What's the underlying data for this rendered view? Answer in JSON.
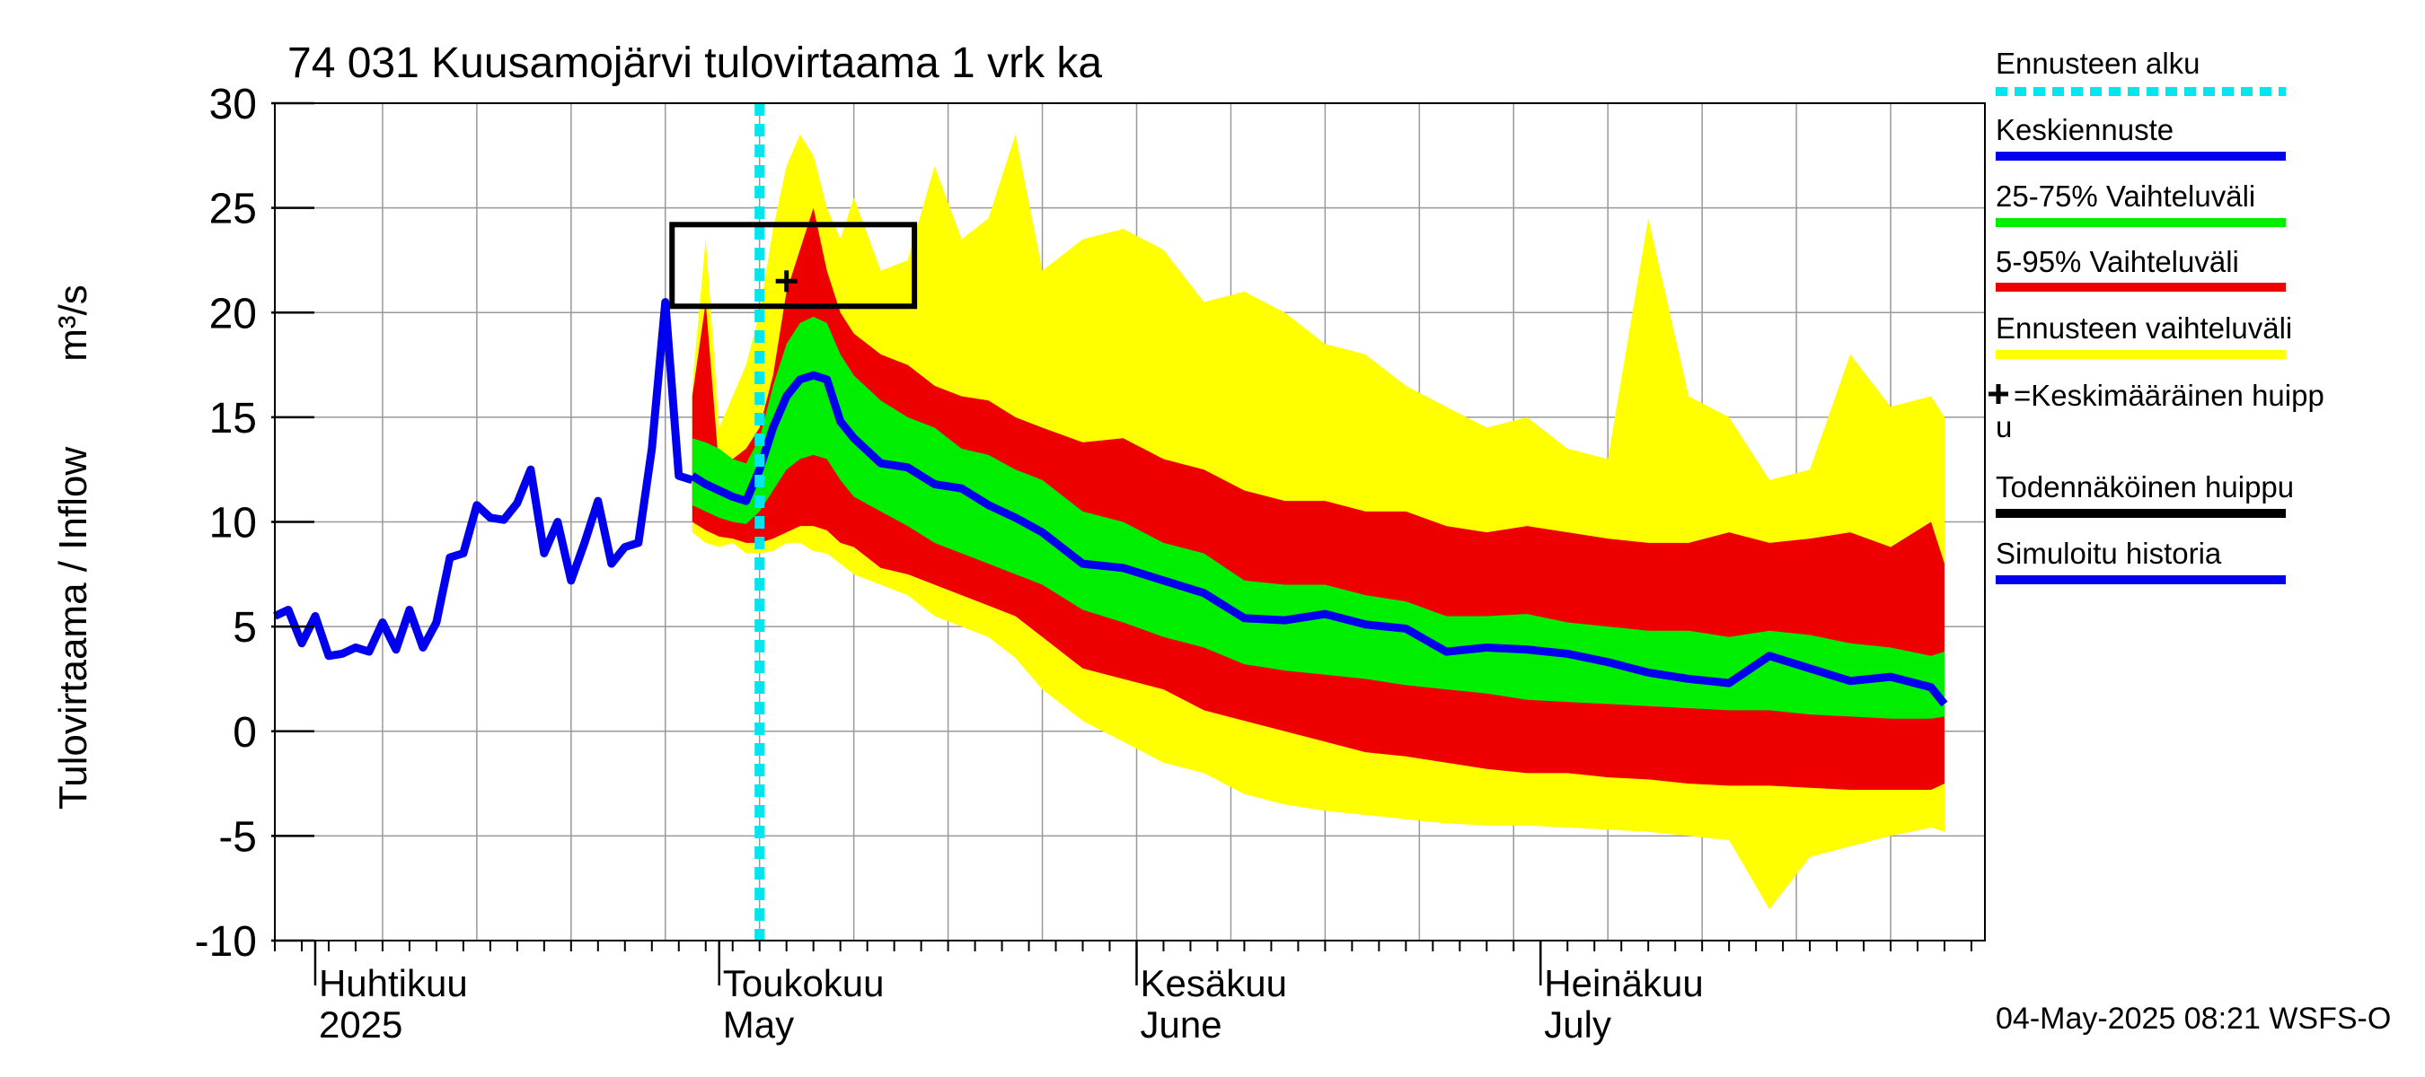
{
  "chart_data": {
    "type": "area",
    "title": "74 031 Kuusamojärvi tulovirtaama 1 vrk ka",
    "ylabel": "Tulovirtaama / Inflow",
    "yunit": "m³/s",
    "ylim": [
      -10,
      30
    ],
    "yticks": [
      -10,
      -5,
      0,
      5,
      10,
      15,
      20,
      25,
      30
    ],
    "x_start": "2025-03-29",
    "x_end": "2025-08-03",
    "forecast_start": "2025-05-04",
    "months": [
      {
        "fi": "Huhtikuu",
        "en": "2025",
        "date": "2025-04-01"
      },
      {
        "fi": "Toukokuu",
        "en": "May",
        "date": "2025-05-01"
      },
      {
        "fi": "Kesäkuu",
        "en": "June",
        "date": "2025-06-01"
      },
      {
        "fi": "Heinäkuu",
        "en": "July",
        "date": "2025-07-01"
      }
    ],
    "history": [
      [
        0,
        5.5
      ],
      [
        1,
        5.8
      ],
      [
        2,
        4.2
      ],
      [
        3,
        5.5
      ],
      [
        4,
        3.6
      ],
      [
        5,
        3.7
      ],
      [
        6,
        4.0
      ],
      [
        7,
        3.8
      ],
      [
        8,
        5.2
      ],
      [
        9,
        3.9
      ],
      [
        10,
        5.8
      ],
      [
        11,
        4.0
      ],
      [
        12,
        5.2
      ],
      [
        13,
        8.3
      ],
      [
        14,
        8.5
      ],
      [
        15,
        10.8
      ],
      [
        16,
        10.2
      ],
      [
        17,
        10.1
      ],
      [
        18,
        10.9
      ],
      [
        19,
        12.5
      ],
      [
        20,
        8.5
      ],
      [
        21,
        10.0
      ],
      [
        22,
        7.2
      ],
      [
        23,
        9.0
      ],
      [
        24,
        11.0
      ],
      [
        25,
        8.0
      ],
      [
        26,
        8.8
      ],
      [
        27,
        9.0
      ],
      [
        28,
        13.5
      ],
      [
        29,
        20.5
      ],
      [
        30,
        12.2
      ],
      [
        31,
        12.0
      ]
    ],
    "forecast_x": [
      31,
      32,
      33,
      34,
      35,
      36,
      37,
      38,
      39,
      40,
      41,
      42,
      43,
      45,
      47,
      49,
      51,
      53,
      55,
      57,
      60,
      63,
      66,
      69,
      72,
      75,
      78,
      81,
      84,
      87,
      90,
      93,
      96,
      99,
      102,
      105,
      108,
      111,
      114,
      117,
      120,
      123,
      124
    ],
    "median": [
      12.2,
      11.8,
      11.5,
      11.2,
      11.0,
      12.5,
      14.5,
      16.0,
      16.8,
      17.0,
      16.8,
      14.8,
      14.0,
      12.8,
      12.6,
      11.8,
      11.6,
      10.8,
      10.2,
      9.5,
      8.0,
      7.8,
      7.2,
      6.6,
      5.4,
      5.3,
      5.6,
      5.1,
      4.9,
      3.8,
      4.0,
      3.9,
      3.7,
      3.3,
      2.8,
      2.5,
      2.3,
      3.6,
      3.0,
      2.4,
      2.6,
      2.1,
      1.3
    ],
    "p25": [
      10.8,
      10.5,
      10.2,
      10.0,
      9.9,
      10.5,
      11.5,
      12.5,
      13.0,
      13.2,
      13.0,
      12.0,
      11.2,
      10.5,
      9.8,
      9.0,
      8.5,
      8.0,
      7.5,
      7.0,
      5.8,
      5.2,
      4.5,
      4.0,
      3.2,
      2.9,
      2.7,
      2.5,
      2.2,
      2.0,
      1.8,
      1.5,
      1.4,
      1.3,
      1.2,
      1.1,
      1.0,
      1.0,
      0.8,
      0.7,
      0.6,
      0.6,
      0.7
    ],
    "p75": [
      14.0,
      13.8,
      13.5,
      13.0,
      12.8,
      14.0,
      16.5,
      18.5,
      19.5,
      19.8,
      19.5,
      18.0,
      17.0,
      15.8,
      15.0,
      14.5,
      13.5,
      13.2,
      12.5,
      12.0,
      10.5,
      10.0,
      9.0,
      8.5,
      7.2,
      7.0,
      7.0,
      6.5,
      6.2,
      5.5,
      5.5,
      5.6,
      5.2,
      5.0,
      4.8,
      4.8,
      4.5,
      4.8,
      4.6,
      4.2,
      4.0,
      3.6,
      3.8
    ],
    "p5": [
      10.0,
      9.6,
      9.3,
      9.2,
      9.0,
      9.0,
      9.2,
      9.5,
      9.8,
      9.8,
      9.6,
      9.0,
      8.8,
      7.8,
      7.5,
      7.0,
      6.5,
      6.0,
      5.5,
      4.5,
      3.0,
      2.5,
      2.0,
      1.0,
      0.5,
      0.0,
      -0.5,
      -1.0,
      -1.2,
      -1.5,
      -1.8,
      -2.0,
      -2.0,
      -2.2,
      -2.3,
      -2.5,
      -2.6,
      -2.6,
      -2.7,
      -2.8,
      -2.8,
      -2.8,
      -2.5
    ],
    "p95": [
      16.0,
      20.5,
      12.5,
      13.0,
      13.5,
      14.5,
      17.0,
      21.0,
      23.0,
      25.0,
      22.0,
      20.0,
      19.0,
      18.0,
      17.5,
      16.5,
      16.0,
      15.8,
      15.0,
      14.5,
      13.8,
      14.0,
      13.0,
      12.5,
      11.5,
      11.0,
      11.0,
      10.5,
      10.5,
      9.8,
      9.5,
      9.8,
      9.5,
      9.2,
      9.0,
      9.0,
      9.5,
      9.0,
      9.2,
      9.5,
      8.8,
      10.0,
      8.0
    ],
    "ens_min": [
      9.5,
      9.0,
      8.8,
      9.0,
      8.5,
      8.5,
      8.6,
      9.0,
      9.0,
      8.6,
      8.5,
      8.0,
      7.5,
      7.0,
      6.5,
      5.5,
      5.0,
      4.5,
      3.5,
      2.0,
      0.5,
      -0.5,
      -1.5,
      -2.0,
      -3.0,
      -3.5,
      -3.8,
      -4.0,
      -4.2,
      -4.4,
      -4.5,
      -4.5,
      -4.6,
      -4.7,
      -4.8,
      -5.0,
      -5.2,
      -8.5,
      -6.0,
      -5.5,
      -5.0,
      -4.6,
      -4.8
    ],
    "ens_max": [
      16.5,
      23.5,
      14.5,
      16.0,
      17.5,
      20.0,
      24.0,
      27.0,
      28.5,
      27.5,
      25.0,
      23.5,
      25.5,
      22.0,
      22.5,
      27.0,
      23.5,
      24.5,
      28.5,
      22.0,
      23.5,
      24.0,
      23.0,
      20.5,
      21.0,
      20.0,
      18.5,
      18.0,
      16.5,
      15.5,
      14.5,
      15.0,
      13.5,
      13.0,
      24.5,
      16.0,
      15.0,
      12.0,
      12.5,
      18.0,
      15.5,
      16.0,
      15.0
    ],
    "peak_marker": {
      "day": 38,
      "value": 21.5
    },
    "peak_box": {
      "day_from": 29.5,
      "day_to": 47.5,
      "value_from": 20.3,
      "value_to": 24.2
    },
    "legend": [
      {
        "label": "Ennusteen alku",
        "color": "#00e5ee",
        "style": "dotted"
      },
      {
        "label": "Keskiennuste",
        "color": "#0000ee",
        "style": "line"
      },
      {
        "label": "25-75% Vaihteluväli",
        "color": "#00ee00",
        "style": "line"
      },
      {
        "label": "5-95% Vaihteluväli",
        "color": "#ee0000",
        "style": "line"
      },
      {
        "label": "Ennusteen vaihteluväli",
        "color": "#ffff00",
        "style": "line"
      },
      {
        "label": "=Keskimääräinen huipp",
        "label2": "u",
        "color": "#000000",
        "style": "plus"
      },
      {
        "label": "Todennäköinen huippu",
        "color": "#000000",
        "style": "line"
      },
      {
        "label": "Simuloitu historia",
        "color": "#0000ee",
        "style": "line"
      }
    ],
    "timestamp": "04-May-2025 08:21 WSFS-O",
    "colors": {
      "yellow": "#ffff00",
      "red": "#ee0000",
      "green": "#00ee00",
      "blue": "#0000ee",
      "cyan": "#00e5ee",
      "grid": "#999999"
    }
  }
}
